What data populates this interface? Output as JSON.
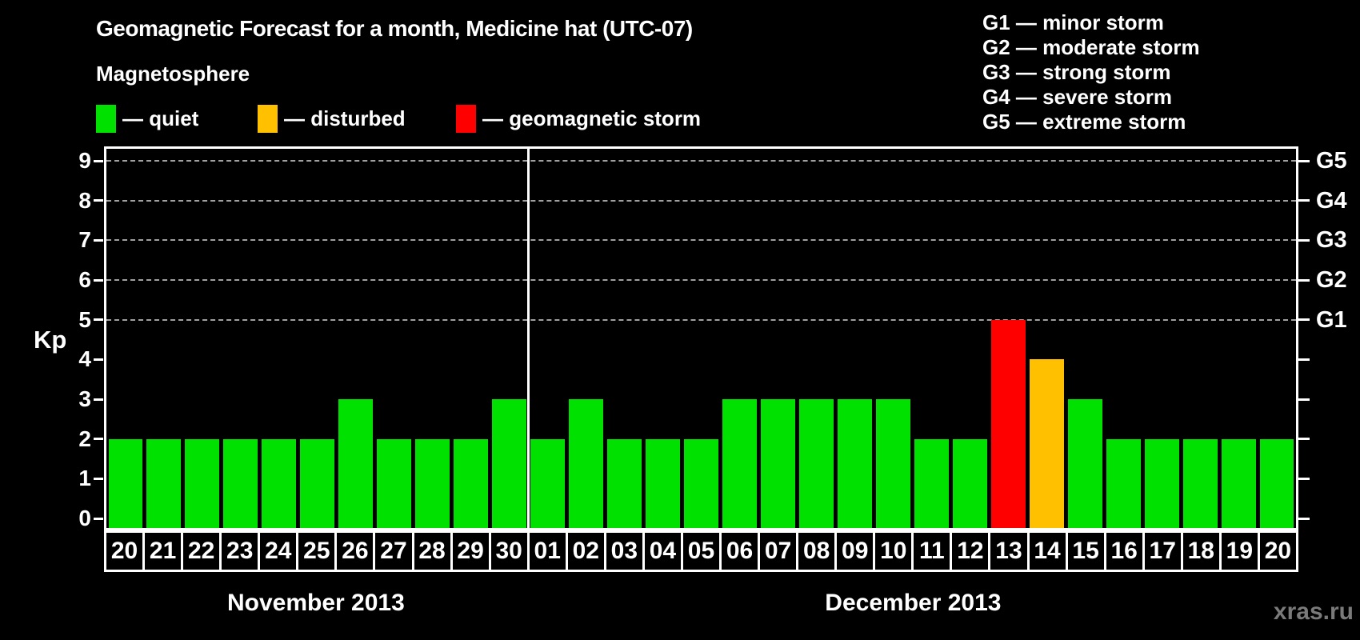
{
  "title": "Geomagnetic Forecast for a month, Medicine hat (UTC-07)",
  "subtitle": "Magnetosphere",
  "legend": {
    "items": [
      {
        "name": "quiet",
        "label": "— quiet",
        "color": "#00E100"
      },
      {
        "name": "disturbed",
        "label": "— disturbed",
        "color": "#FFC000"
      },
      {
        "name": "storm",
        "label": "— geomagnetic storm",
        "color": "#FF0000"
      }
    ]
  },
  "g_scale_legend": [
    "G1 — minor storm",
    "G2 — moderate storm",
    "G3 — strong storm",
    "G4 — severe storm",
    "G5 — extreme storm"
  ],
  "watermark": "xras.ru",
  "chart_data": {
    "type": "bar",
    "title": "Geomagnetic Forecast for a month, Medicine hat (UTC-07)",
    "ylabel": "Kp",
    "ylim": [
      0,
      9
    ],
    "yticks": [
      0,
      1,
      2,
      3,
      4,
      5,
      6,
      7,
      8,
      9
    ],
    "grid_values": [
      5,
      6,
      7,
      8,
      9
    ],
    "grid_style": "dashed",
    "legend_position": "top",
    "right_axis": [
      {
        "value": 5,
        "label": "G1"
      },
      {
        "value": 6,
        "label": "G2"
      },
      {
        "value": 7,
        "label": "G3"
      },
      {
        "value": 8,
        "label": "G4"
      },
      {
        "value": 9,
        "label": "G5"
      }
    ],
    "status_colors": {
      "quiet": "#00E100",
      "disturbed": "#FFC000",
      "storm": "#FF0000"
    },
    "months": [
      {
        "label": "November 2013",
        "days": 11
      },
      {
        "label": "December 2013",
        "days": 20
      }
    ],
    "points": [
      {
        "day": "20",
        "kp": 2,
        "status": "quiet"
      },
      {
        "day": "21",
        "kp": 2,
        "status": "quiet"
      },
      {
        "day": "22",
        "kp": 2,
        "status": "quiet"
      },
      {
        "day": "23",
        "kp": 2,
        "status": "quiet"
      },
      {
        "day": "24",
        "kp": 2,
        "status": "quiet"
      },
      {
        "day": "25",
        "kp": 2,
        "status": "quiet"
      },
      {
        "day": "26",
        "kp": 3,
        "status": "quiet"
      },
      {
        "day": "27",
        "kp": 2,
        "status": "quiet"
      },
      {
        "day": "28",
        "kp": 2,
        "status": "quiet"
      },
      {
        "day": "29",
        "kp": 2,
        "status": "quiet"
      },
      {
        "day": "30",
        "kp": 3,
        "status": "quiet"
      },
      {
        "day": "01",
        "kp": 2,
        "status": "quiet"
      },
      {
        "day": "02",
        "kp": 3,
        "status": "quiet"
      },
      {
        "day": "03",
        "kp": 2,
        "status": "quiet"
      },
      {
        "day": "04",
        "kp": 2,
        "status": "quiet"
      },
      {
        "day": "05",
        "kp": 2,
        "status": "quiet"
      },
      {
        "day": "06",
        "kp": 3,
        "status": "quiet"
      },
      {
        "day": "07",
        "kp": 3,
        "status": "quiet"
      },
      {
        "day": "08",
        "kp": 3,
        "status": "quiet"
      },
      {
        "day": "09",
        "kp": 3,
        "status": "quiet"
      },
      {
        "day": "10",
        "kp": 3,
        "status": "quiet"
      },
      {
        "day": "11",
        "kp": 2,
        "status": "quiet"
      },
      {
        "day": "12",
        "kp": 2,
        "status": "quiet"
      },
      {
        "day": "13",
        "kp": 5,
        "status": "storm"
      },
      {
        "day": "14",
        "kp": 4,
        "status": "disturbed"
      },
      {
        "day": "15",
        "kp": 3,
        "status": "quiet"
      },
      {
        "day": "16",
        "kp": 2,
        "status": "quiet"
      },
      {
        "day": "17",
        "kp": 2,
        "status": "quiet"
      },
      {
        "day": "18",
        "kp": 2,
        "status": "quiet"
      },
      {
        "day": "19",
        "kp": 2,
        "status": "quiet"
      },
      {
        "day": "20",
        "kp": 2,
        "status": "quiet"
      }
    ]
  }
}
